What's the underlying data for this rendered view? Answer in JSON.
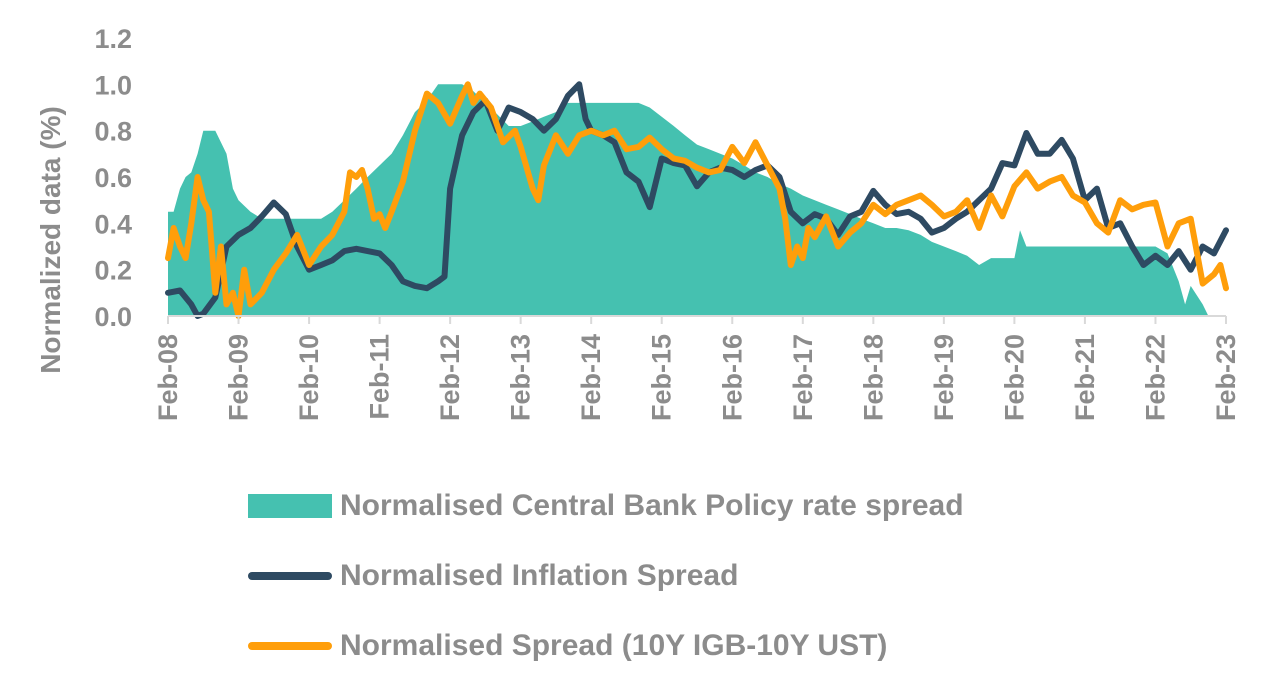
{
  "chart_data": {
    "type": "line",
    "title": "",
    "ylabel": "Normalized data (%)",
    "xlabel": "",
    "ylim": [
      0,
      1.2
    ],
    "yticks": [
      "0.0",
      "0.2",
      "0.4",
      "0.6",
      "0.8",
      "1.0",
      "1.2"
    ],
    "xticks": [
      "Feb-08",
      "Feb-09",
      "Feb-10",
      "Feb-11",
      "Feb-12",
      "Feb-13",
      "Feb-14",
      "Feb-15",
      "Feb-16",
      "Feb-17",
      "Feb-18",
      "Feb-19",
      "Feb-20",
      "Feb-21",
      "Feb-22",
      "Feb-23"
    ],
    "xlim": [
      2008.0,
      2023.0
    ],
    "grid": false,
    "legend_position": "bottom",
    "series": [
      {
        "name": "Normalised Central Bank Policy rate spread",
        "kind": "area",
        "color": "#45C1B0",
        "points": [
          [
            2008.0,
            0.45
          ],
          [
            2008.08,
            0.45
          ],
          [
            2008.17,
            0.55
          ],
          [
            2008.25,
            0.6
          ],
          [
            2008.33,
            0.62
          ],
          [
            2008.42,
            0.7
          ],
          [
            2008.5,
            0.8
          ],
          [
            2008.58,
            0.8
          ],
          [
            2008.67,
            0.8
          ],
          [
            2008.75,
            0.75
          ],
          [
            2008.83,
            0.7
          ],
          [
            2008.92,
            0.55
          ],
          [
            2009.0,
            0.5
          ],
          [
            2009.17,
            0.45
          ],
          [
            2009.33,
            0.42
          ],
          [
            2009.5,
            0.42
          ],
          [
            2009.67,
            0.42
          ],
          [
            2009.83,
            0.42
          ],
          [
            2010.0,
            0.42
          ],
          [
            2010.17,
            0.42
          ],
          [
            2010.33,
            0.45
          ],
          [
            2010.5,
            0.5
          ],
          [
            2010.67,
            0.55
          ],
          [
            2010.83,
            0.6
          ],
          [
            2011.0,
            0.65
          ],
          [
            2011.17,
            0.7
          ],
          [
            2011.33,
            0.78
          ],
          [
            2011.5,
            0.88
          ],
          [
            2011.67,
            0.93
          ],
          [
            2011.83,
            1.0
          ],
          [
            2012.0,
            1.0
          ],
          [
            2012.17,
            1.0
          ],
          [
            2012.33,
            0.97
          ],
          [
            2012.5,
            0.92
          ],
          [
            2012.67,
            0.87
          ],
          [
            2012.83,
            0.82
          ],
          [
            2013.0,
            0.82
          ],
          [
            2013.17,
            0.84
          ],
          [
            2013.33,
            0.86
          ],
          [
            2013.5,
            0.88
          ],
          [
            2013.67,
            0.92
          ],
          [
            2013.83,
            0.92
          ],
          [
            2014.0,
            0.92
          ],
          [
            2014.17,
            0.92
          ],
          [
            2014.33,
            0.92
          ],
          [
            2014.5,
            0.92
          ],
          [
            2014.67,
            0.92
          ],
          [
            2014.83,
            0.9
          ],
          [
            2015.0,
            0.86
          ],
          [
            2015.17,
            0.82
          ],
          [
            2015.33,
            0.78
          ],
          [
            2015.5,
            0.74
          ],
          [
            2015.67,
            0.72
          ],
          [
            2015.83,
            0.7
          ],
          [
            2016.0,
            0.68
          ],
          [
            2016.17,
            0.65
          ],
          [
            2016.33,
            0.62
          ],
          [
            2016.5,
            0.6
          ],
          [
            2016.67,
            0.57
          ],
          [
            2016.83,
            0.55
          ],
          [
            2017.0,
            0.52
          ],
          [
            2017.17,
            0.5
          ],
          [
            2017.33,
            0.48
          ],
          [
            2017.5,
            0.46
          ],
          [
            2017.67,
            0.44
          ],
          [
            2017.83,
            0.42
          ],
          [
            2018.0,
            0.4
          ],
          [
            2018.17,
            0.38
          ],
          [
            2018.33,
            0.38
          ],
          [
            2018.5,
            0.37
          ],
          [
            2018.67,
            0.35
          ],
          [
            2018.83,
            0.32
          ],
          [
            2019.0,
            0.3
          ],
          [
            2019.17,
            0.28
          ],
          [
            2019.33,
            0.26
          ],
          [
            2019.5,
            0.22
          ],
          [
            2019.67,
            0.25
          ],
          [
            2019.83,
            0.25
          ],
          [
            2020.0,
            0.25
          ],
          [
            2020.08,
            0.37
          ],
          [
            2020.17,
            0.3
          ],
          [
            2020.33,
            0.3
          ],
          [
            2020.5,
            0.3
          ],
          [
            2020.67,
            0.3
          ],
          [
            2020.83,
            0.3
          ],
          [
            2021.0,
            0.3
          ],
          [
            2021.17,
            0.3
          ],
          [
            2021.33,
            0.3
          ],
          [
            2021.5,
            0.3
          ],
          [
            2021.67,
            0.3
          ],
          [
            2021.83,
            0.3
          ],
          [
            2022.0,
            0.3
          ],
          [
            2022.17,
            0.27
          ],
          [
            2022.33,
            0.15
          ],
          [
            2022.42,
            0.05
          ],
          [
            2022.5,
            0.13
          ],
          [
            2022.67,
            0.05
          ],
          [
            2022.75,
            0.0
          ],
          [
            2023.0,
            0.0
          ]
        ]
      },
      {
        "name": "Normalised Inflation Spread",
        "kind": "line",
        "color": "#2E4A62",
        "points": [
          [
            2008.0,
            0.1
          ],
          [
            2008.17,
            0.11
          ],
          [
            2008.33,
            0.05
          ],
          [
            2008.42,
            0.0
          ],
          [
            2008.5,
            0.01
          ],
          [
            2008.67,
            0.08
          ],
          [
            2008.83,
            0.3
          ],
          [
            2009.0,
            0.35
          ],
          [
            2009.17,
            0.38
          ],
          [
            2009.33,
            0.43
          ],
          [
            2009.5,
            0.49
          ],
          [
            2009.67,
            0.44
          ],
          [
            2009.83,
            0.3
          ],
          [
            2010.0,
            0.2
          ],
          [
            2010.17,
            0.22
          ],
          [
            2010.33,
            0.24
          ],
          [
            2010.5,
            0.28
          ],
          [
            2010.67,
            0.29
          ],
          [
            2010.83,
            0.28
          ],
          [
            2011.0,
            0.27
          ],
          [
            2011.17,
            0.22
          ],
          [
            2011.33,
            0.15
          ],
          [
            2011.5,
            0.13
          ],
          [
            2011.67,
            0.12
          ],
          [
            2011.83,
            0.15
          ],
          [
            2011.92,
            0.17
          ],
          [
            2012.0,
            0.55
          ],
          [
            2012.17,
            0.78
          ],
          [
            2012.33,
            0.88
          ],
          [
            2012.5,
            0.93
          ],
          [
            2012.67,
            0.8
          ],
          [
            2012.83,
            0.9
          ],
          [
            2013.0,
            0.88
          ],
          [
            2013.17,
            0.85
          ],
          [
            2013.33,
            0.8
          ],
          [
            2013.5,
            0.85
          ],
          [
            2013.67,
            0.95
          ],
          [
            2013.83,
            1.0
          ],
          [
            2013.92,
            0.85
          ],
          [
            2014.0,
            0.8
          ],
          [
            2014.17,
            0.78
          ],
          [
            2014.33,
            0.75
          ],
          [
            2014.5,
            0.62
          ],
          [
            2014.67,
            0.58
          ],
          [
            2014.83,
            0.47
          ],
          [
            2015.0,
            0.68
          ],
          [
            2015.17,
            0.66
          ],
          [
            2015.33,
            0.65
          ],
          [
            2015.5,
            0.56
          ],
          [
            2015.67,
            0.62
          ],
          [
            2015.83,
            0.64
          ],
          [
            2016.0,
            0.63
          ],
          [
            2016.17,
            0.6
          ],
          [
            2016.33,
            0.63
          ],
          [
            2016.5,
            0.65
          ],
          [
            2016.67,
            0.6
          ],
          [
            2016.83,
            0.45
          ],
          [
            2017.0,
            0.4
          ],
          [
            2017.17,
            0.44
          ],
          [
            2017.33,
            0.42
          ],
          [
            2017.5,
            0.35
          ],
          [
            2017.67,
            0.43
          ],
          [
            2017.83,
            0.45
          ],
          [
            2018.0,
            0.54
          ],
          [
            2018.17,
            0.48
          ],
          [
            2018.33,
            0.44
          ],
          [
            2018.5,
            0.45
          ],
          [
            2018.67,
            0.42
          ],
          [
            2018.83,
            0.36
          ],
          [
            2019.0,
            0.38
          ],
          [
            2019.17,
            0.42
          ],
          [
            2019.33,
            0.45
          ],
          [
            2019.5,
            0.5
          ],
          [
            2019.67,
            0.55
          ],
          [
            2019.83,
            0.66
          ],
          [
            2020.0,
            0.65
          ],
          [
            2020.17,
            0.79
          ],
          [
            2020.33,
            0.7
          ],
          [
            2020.5,
            0.7
          ],
          [
            2020.67,
            0.76
          ],
          [
            2020.83,
            0.68
          ],
          [
            2021.0,
            0.5
          ],
          [
            2021.17,
            0.55
          ],
          [
            2021.33,
            0.38
          ],
          [
            2021.5,
            0.4
          ],
          [
            2021.67,
            0.3
          ],
          [
            2021.83,
            0.22
          ],
          [
            2022.0,
            0.26
          ],
          [
            2022.17,
            0.22
          ],
          [
            2022.33,
            0.28
          ],
          [
            2022.5,
            0.2
          ],
          [
            2022.67,
            0.3
          ],
          [
            2022.83,
            0.27
          ],
          [
            2023.0,
            0.37
          ]
        ]
      },
      {
        "name": "Normalised Spread (10Y IGB-10Y UST)",
        "kind": "line",
        "color": "#FF9E0A",
        "points": [
          [
            2008.0,
            0.25
          ],
          [
            2008.08,
            0.38
          ],
          [
            2008.17,
            0.3
          ],
          [
            2008.25,
            0.25
          ],
          [
            2008.33,
            0.4
          ],
          [
            2008.42,
            0.6
          ],
          [
            2008.5,
            0.5
          ],
          [
            2008.58,
            0.45
          ],
          [
            2008.67,
            0.1
          ],
          [
            2008.75,
            0.3
          ],
          [
            2008.83,
            0.05
          ],
          [
            2008.92,
            0.1
          ],
          [
            2009.0,
            0.0
          ],
          [
            2009.08,
            0.2
          ],
          [
            2009.17,
            0.05
          ],
          [
            2009.33,
            0.1
          ],
          [
            2009.5,
            0.2
          ],
          [
            2009.67,
            0.27
          ],
          [
            2009.83,
            0.35
          ],
          [
            2010.0,
            0.22
          ],
          [
            2010.17,
            0.3
          ],
          [
            2010.33,
            0.35
          ],
          [
            2010.5,
            0.45
          ],
          [
            2010.58,
            0.62
          ],
          [
            2010.67,
            0.6
          ],
          [
            2010.75,
            0.63
          ],
          [
            2010.83,
            0.55
          ],
          [
            2010.92,
            0.42
          ],
          [
            2011.0,
            0.44
          ],
          [
            2011.08,
            0.38
          ],
          [
            2011.17,
            0.45
          ],
          [
            2011.33,
            0.58
          ],
          [
            2011.5,
            0.8
          ],
          [
            2011.67,
            0.96
          ],
          [
            2011.83,
            0.92
          ],
          [
            2012.0,
            0.83
          ],
          [
            2012.17,
            0.95
          ],
          [
            2012.25,
            1.0
          ],
          [
            2012.33,
            0.92
          ],
          [
            2012.42,
            0.96
          ],
          [
            2012.58,
            0.9
          ],
          [
            2012.75,
            0.75
          ],
          [
            2012.92,
            0.8
          ],
          [
            2013.0,
            0.73
          ],
          [
            2013.17,
            0.55
          ],
          [
            2013.25,
            0.5
          ],
          [
            2013.33,
            0.65
          ],
          [
            2013.5,
            0.78
          ],
          [
            2013.67,
            0.7
          ],
          [
            2013.83,
            0.78
          ],
          [
            2014.0,
            0.8
          ],
          [
            2014.17,
            0.78
          ],
          [
            2014.33,
            0.8
          ],
          [
            2014.5,
            0.72
          ],
          [
            2014.67,
            0.73
          ],
          [
            2014.83,
            0.77
          ],
          [
            2015.0,
            0.72
          ],
          [
            2015.17,
            0.68
          ],
          [
            2015.33,
            0.67
          ],
          [
            2015.5,
            0.64
          ],
          [
            2015.67,
            0.62
          ],
          [
            2015.83,
            0.63
          ],
          [
            2016.0,
            0.73
          ],
          [
            2016.17,
            0.66
          ],
          [
            2016.33,
            0.75
          ],
          [
            2016.5,
            0.65
          ],
          [
            2016.67,
            0.55
          ],
          [
            2016.75,
            0.42
          ],
          [
            2016.83,
            0.22
          ],
          [
            2016.92,
            0.3
          ],
          [
            2017.0,
            0.25
          ],
          [
            2017.08,
            0.38
          ],
          [
            2017.17,
            0.34
          ],
          [
            2017.33,
            0.43
          ],
          [
            2017.5,
            0.3
          ],
          [
            2017.67,
            0.36
          ],
          [
            2017.83,
            0.4
          ],
          [
            2018.0,
            0.48
          ],
          [
            2018.17,
            0.44
          ],
          [
            2018.33,
            0.48
          ],
          [
            2018.5,
            0.5
          ],
          [
            2018.67,
            0.52
          ],
          [
            2018.83,
            0.48
          ],
          [
            2019.0,
            0.43
          ],
          [
            2019.17,
            0.45
          ],
          [
            2019.33,
            0.5
          ],
          [
            2019.5,
            0.38
          ],
          [
            2019.67,
            0.52
          ],
          [
            2019.83,
            0.43
          ],
          [
            2020.0,
            0.56
          ],
          [
            2020.17,
            0.62
          ],
          [
            2020.33,
            0.55
          ],
          [
            2020.5,
            0.58
          ],
          [
            2020.67,
            0.6
          ],
          [
            2020.83,
            0.52
          ],
          [
            2021.0,
            0.49
          ],
          [
            2021.17,
            0.4
          ],
          [
            2021.33,
            0.36
          ],
          [
            2021.5,
            0.5
          ],
          [
            2021.67,
            0.46
          ],
          [
            2021.83,
            0.48
          ],
          [
            2022.0,
            0.49
          ],
          [
            2022.17,
            0.3
          ],
          [
            2022.33,
            0.4
          ],
          [
            2022.5,
            0.42
          ],
          [
            2022.67,
            0.14
          ],
          [
            2022.83,
            0.18
          ],
          [
            2022.92,
            0.22
          ],
          [
            2023.0,
            0.12
          ]
        ]
      }
    ]
  }
}
